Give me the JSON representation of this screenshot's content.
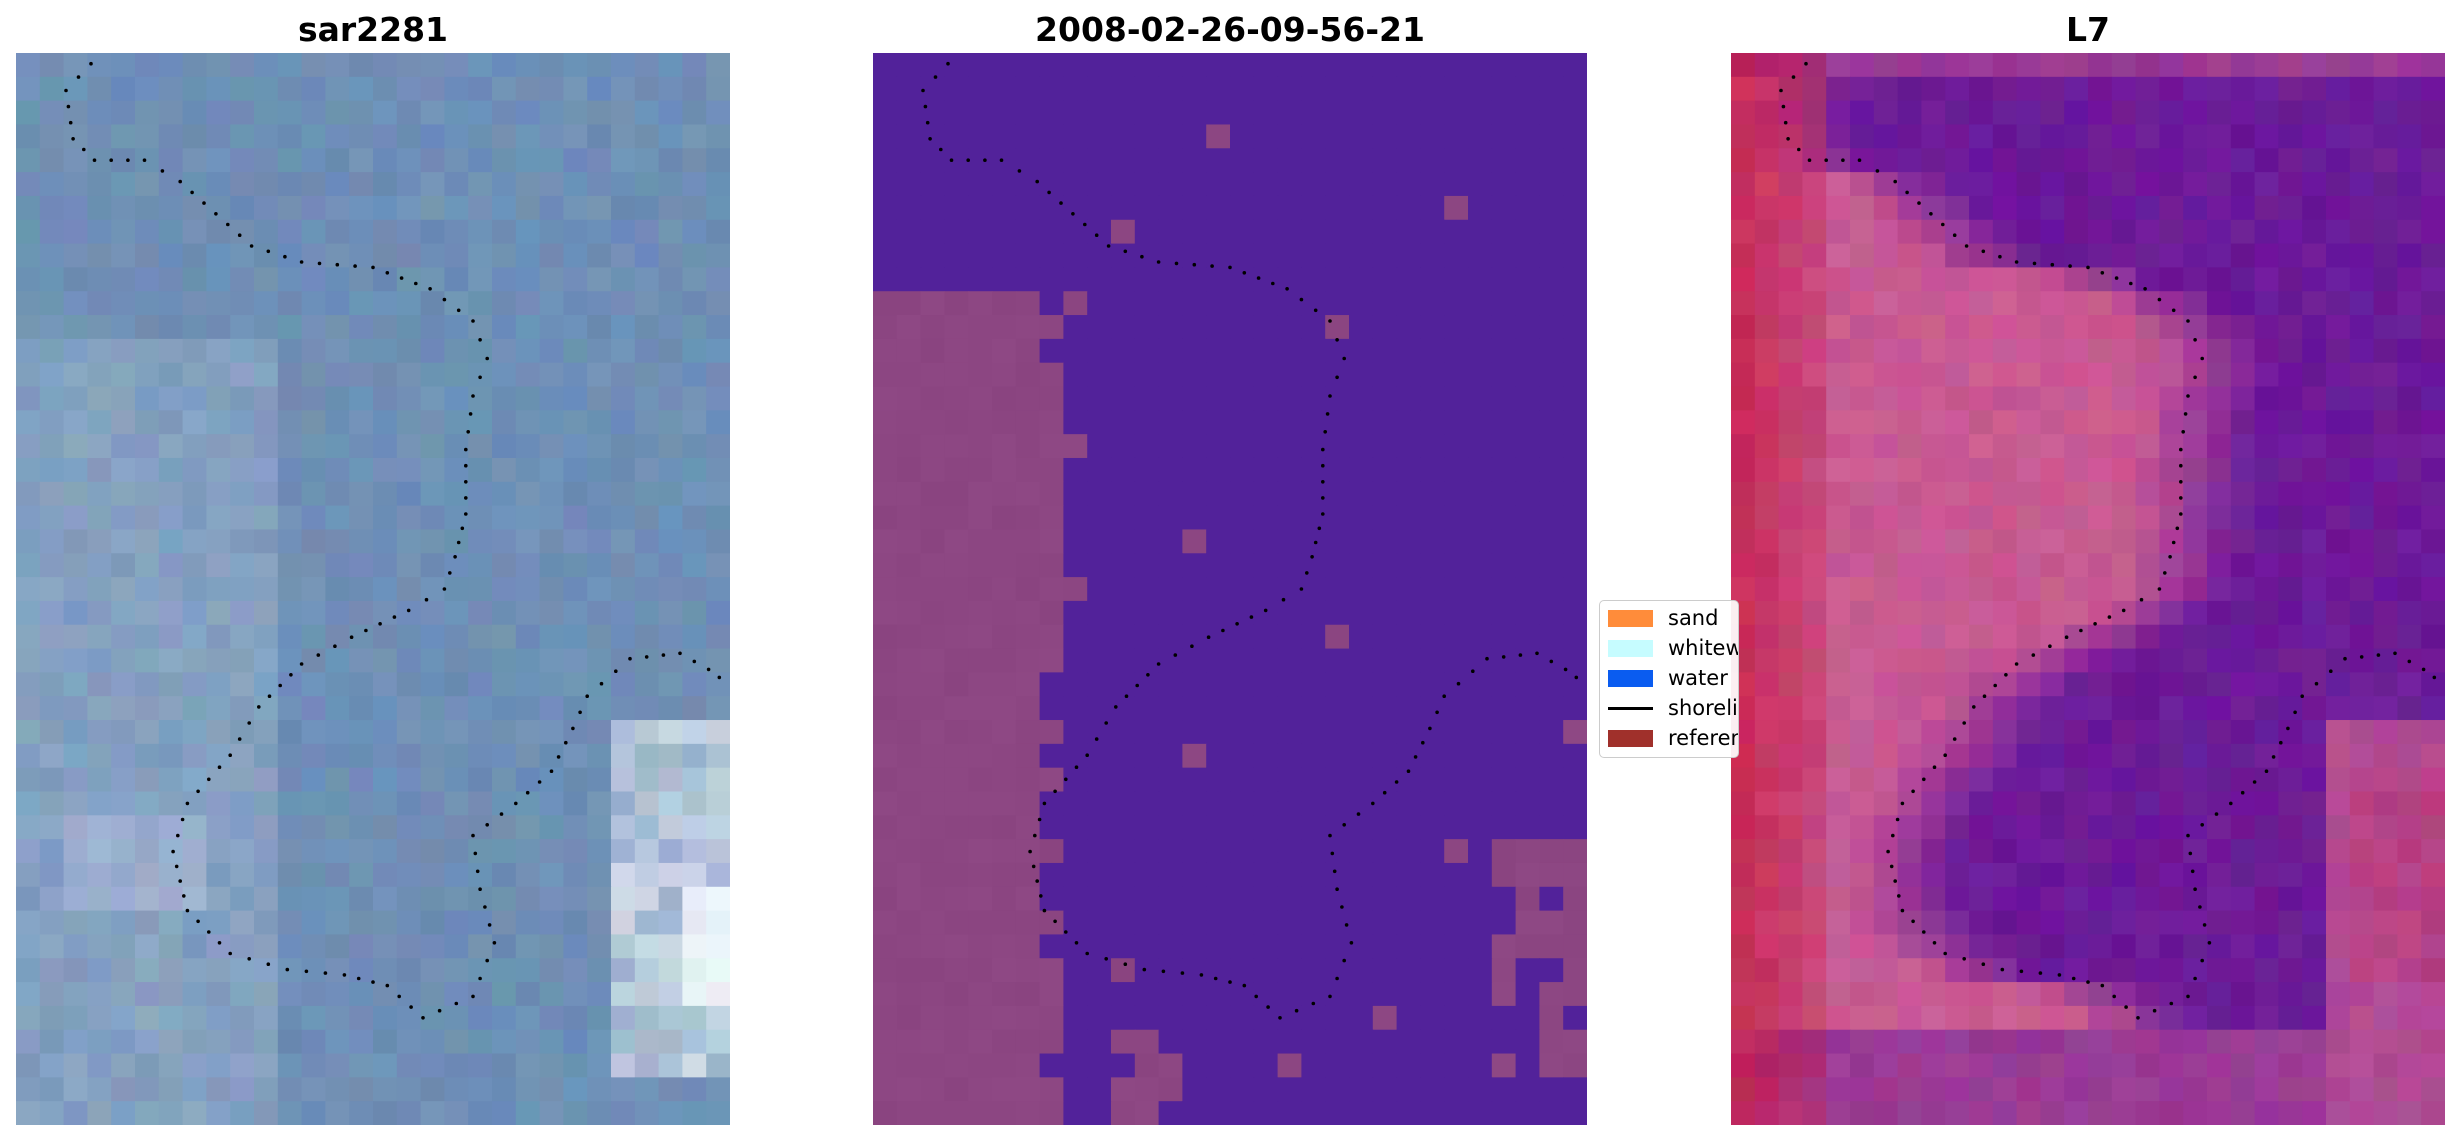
{
  "panels": [
    {
      "title": "sar2281"
    },
    {
      "title": "2008-02-26-09-56-21"
    },
    {
      "title": "L7"
    }
  ],
  "legend": {
    "items": [
      {
        "label": "sand",
        "kind": "patch",
        "color": "#ff8c3a"
      },
      {
        "label": "whitewater",
        "kind": "patch",
        "color": "#c6fcff"
      },
      {
        "label": "water",
        "kind": "patch",
        "color": "#0a5cf0"
      },
      {
        "label": "shoreline",
        "kind": "line",
        "color": "#000000"
      },
      {
        "label": "reference",
        "kind": "patch",
        "color": "#a0302b"
      }
    ]
  },
  "colors": {
    "sar_base": "#6f8eb8",
    "classification_water": "#52229a",
    "classification_sand": "#8a4480",
    "l7_water": "#6c1a98",
    "l7_land": "#c85a92",
    "shoreline": "#000000"
  }
}
